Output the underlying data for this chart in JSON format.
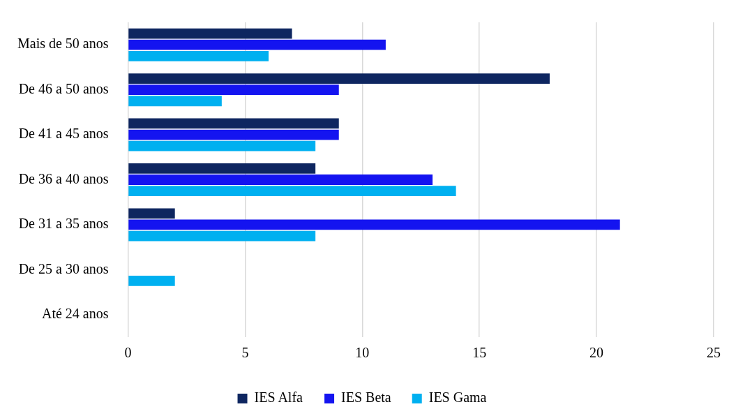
{
  "chart_data": {
    "type": "bar",
    "orientation": "horizontal",
    "categories": [
      "Mais de 50 anos",
      "De 46 a 50 anos",
      "De 41 a 45 anos",
      "De 36 a 40 anos",
      "De 31 a 35 anos",
      "De 25 a 30 anos",
      "Até 24 anos"
    ],
    "series": [
      {
        "name": "IES Alfa",
        "color": "#0e2660",
        "values": [
          7,
          18,
          9,
          8,
          2,
          0,
          0
        ]
      },
      {
        "name": "IES Beta",
        "color": "#1414f0",
        "values": [
          11,
          9,
          9,
          13,
          21,
          0,
          0
        ]
      },
      {
        "name": "IES Gama",
        "color": "#00b0f0",
        "values": [
          6,
          4,
          8,
          14,
          8,
          2,
          0
        ]
      }
    ],
    "xlim": [
      0,
      25
    ],
    "xticks": [
      0,
      5,
      10,
      15,
      20,
      25
    ],
    "grid": "x",
    "legend": "bottom"
  }
}
